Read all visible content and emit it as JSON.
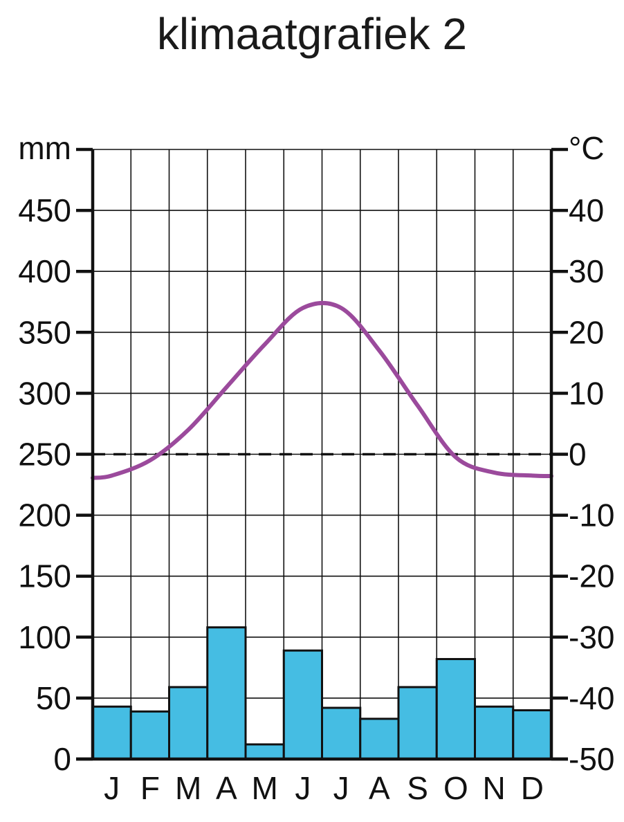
{
  "title": "klimaatgrafiek 2",
  "colors": {
    "bars": "#45bde3",
    "temperature_line": "#9b4a9c",
    "grid": "#111111"
  },
  "chart_data": {
    "type": "bar+line",
    "title": "klimaatgrafiek 2",
    "categories": [
      "J",
      "F",
      "M",
      "A",
      "M",
      "J",
      "J",
      "A",
      "S",
      "O",
      "N",
      "D"
    ],
    "precipitation": {
      "axis": "left",
      "unit": "mm",
      "ylim": [
        0,
        500
      ],
      "ticks": [
        0,
        50,
        100,
        150,
        200,
        250,
        300,
        350,
        400,
        450
      ],
      "values": [
        43,
        39,
        59,
        108,
        12,
        89,
        42,
        33,
        59,
        82,
        43,
        40
      ]
    },
    "temperature": {
      "axis": "right",
      "unit": "°C",
      "ylim": [
        -50,
        50
      ],
      "ticks": [
        "-50",
        "-40",
        "-30",
        "-20",
        "-10",
        "0",
        "10",
        "20",
        "30",
        "40"
      ],
      "values": [
        -3.5,
        -1,
        4,
        11,
        18,
        24,
        24,
        17,
        8,
        -0.5,
        -3,
        -3.5
      ]
    },
    "reference_line": {
      "value": 0,
      "axis": "right",
      "style": "dashed"
    },
    "grid": true
  }
}
